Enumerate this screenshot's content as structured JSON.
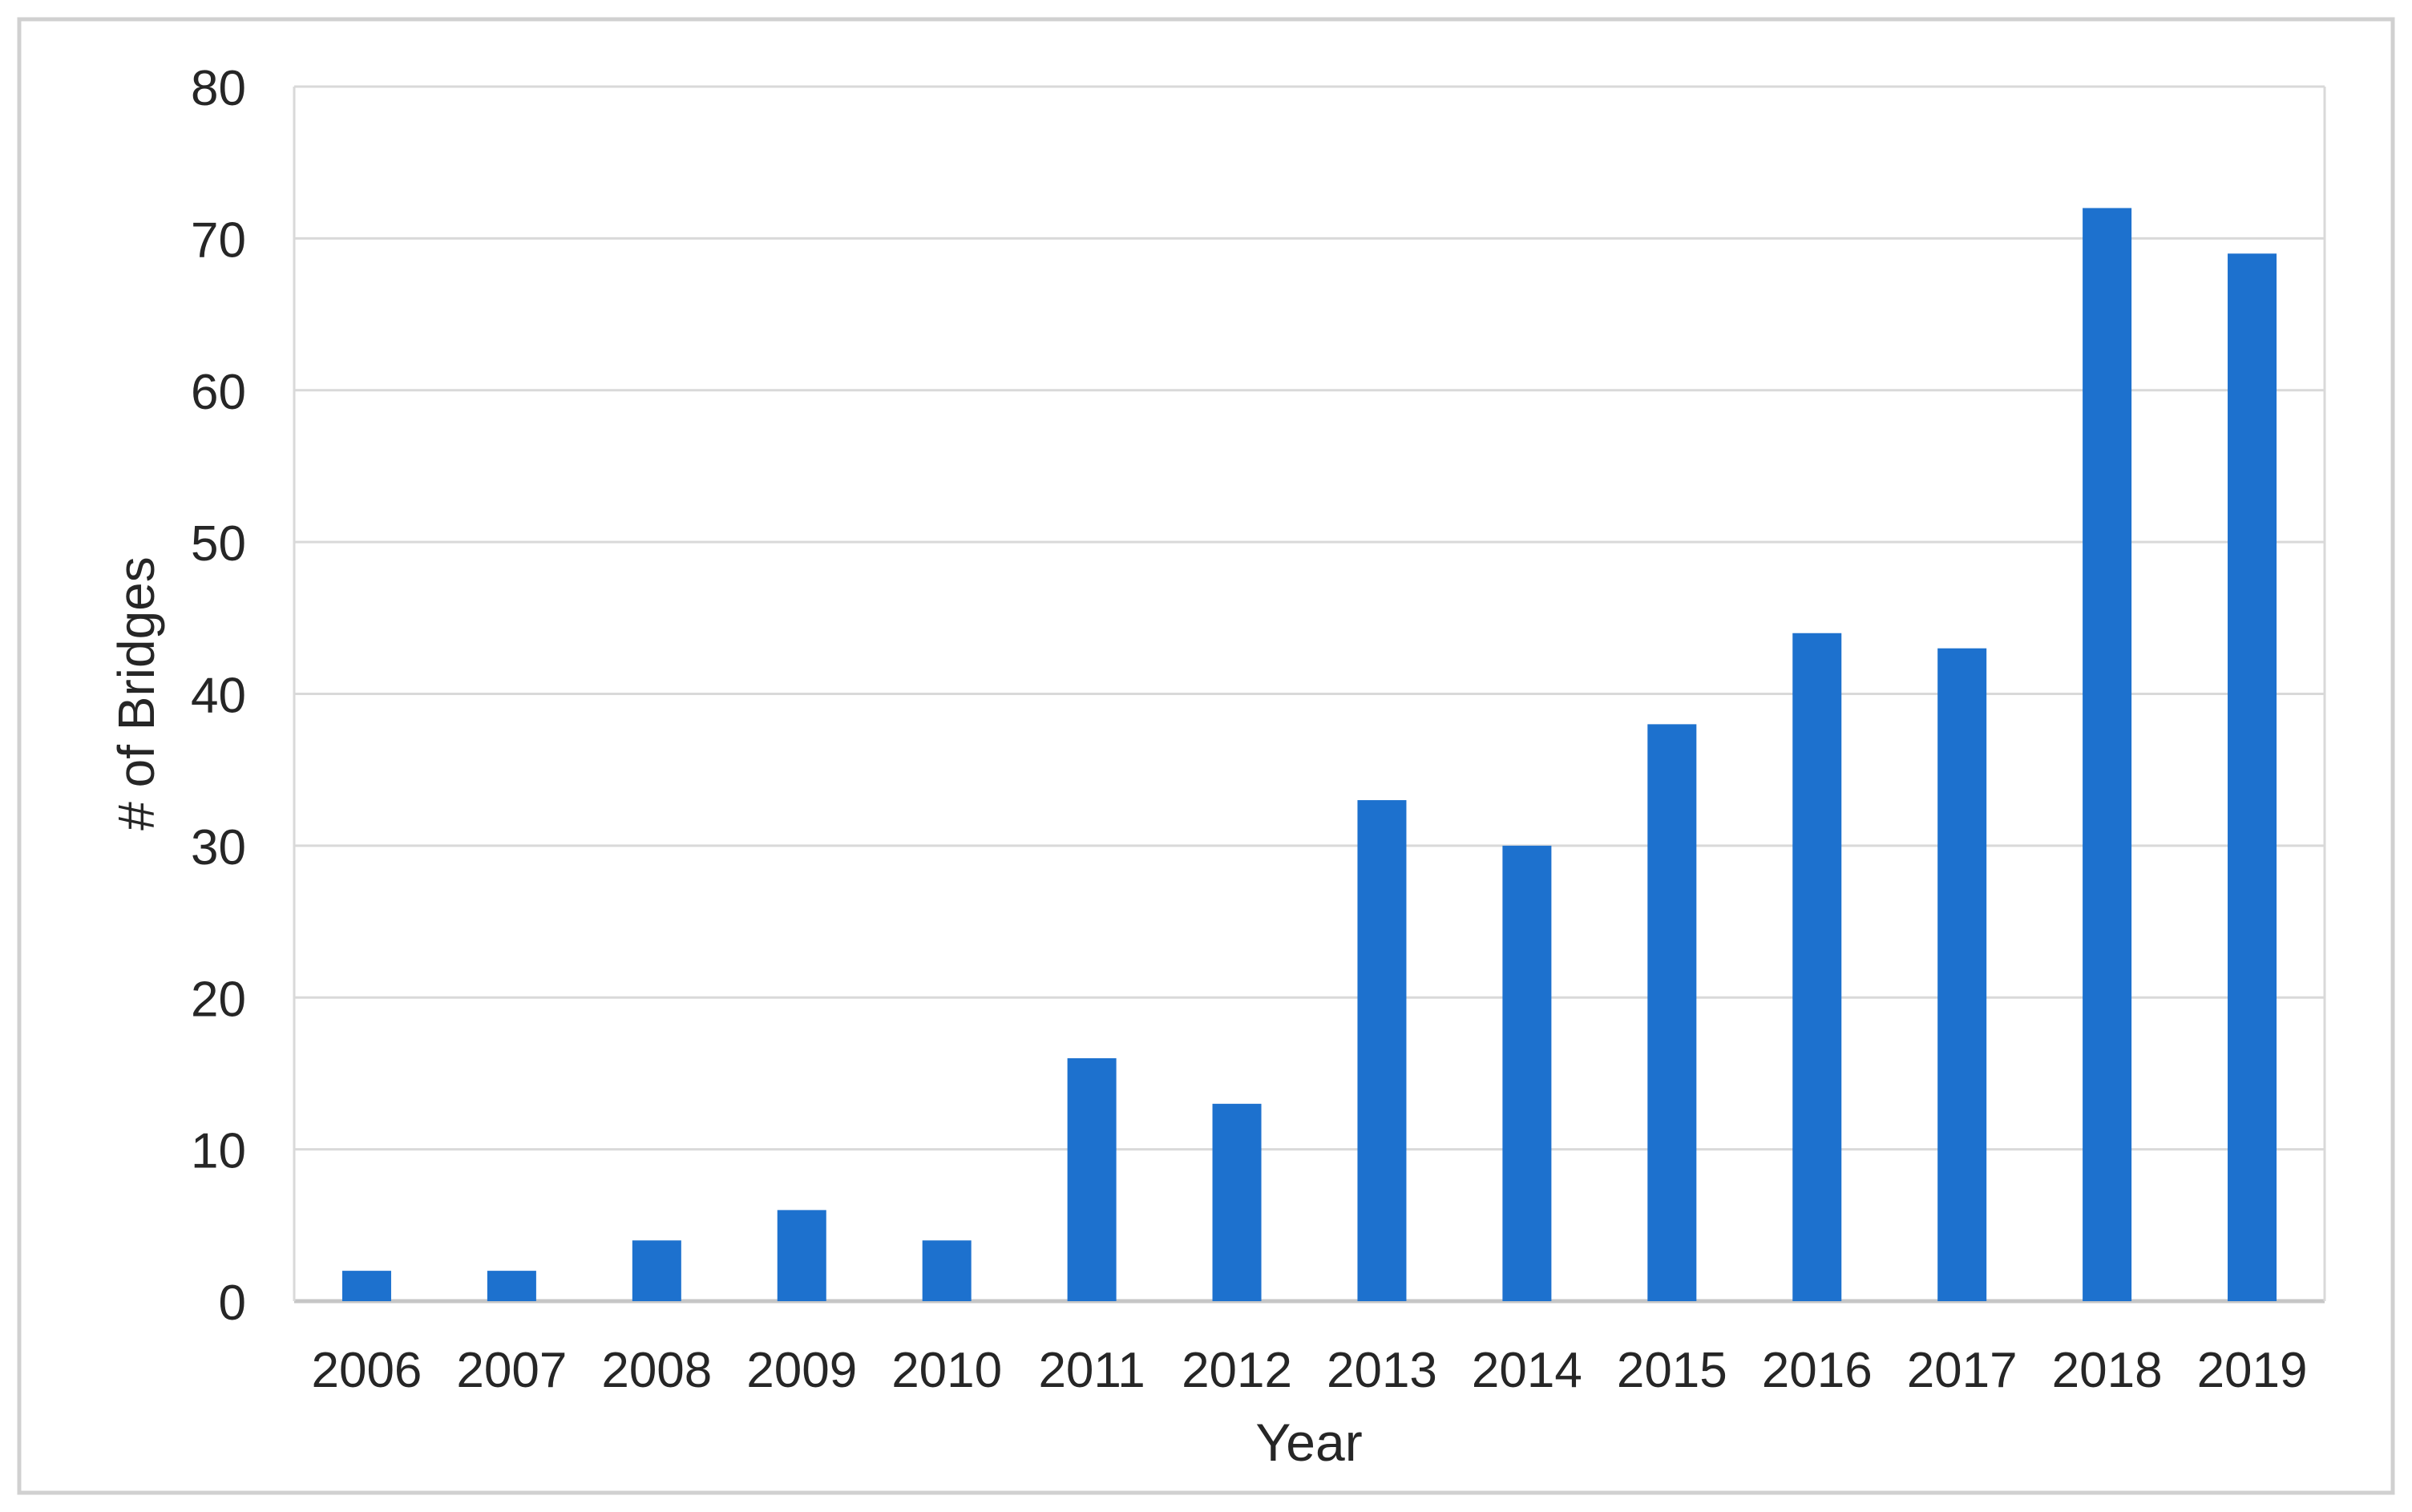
{
  "chart_data": {
    "type": "bar",
    "categories": [
      "2006",
      "2007",
      "2008",
      "2009",
      "2010",
      "2011",
      "2012",
      "2013",
      "2014",
      "2015",
      "2016",
      "2017",
      "2018",
      "2019"
    ],
    "values": [
      2,
      2,
      4,
      6,
      4,
      16,
      13,
      33,
      30,
      38,
      44,
      43,
      72,
      69
    ],
    "title": "",
    "xlabel": "Year",
    "ylabel": "# of Bridges",
    "ylim": [
      0,
      80
    ],
    "yticks": [
      0,
      10,
      20,
      30,
      40,
      50,
      60,
      70,
      80
    ],
    "grid": true,
    "legend": false,
    "colors": {
      "bar": "#1D71CE",
      "gridline": "#D9D9D9",
      "baseline": "#C6C6C6",
      "plot_border": "#D9D9D9",
      "text": "#262626",
      "outer_frame": "#D0D0D0",
      "background": "#FFFFFF"
    }
  }
}
